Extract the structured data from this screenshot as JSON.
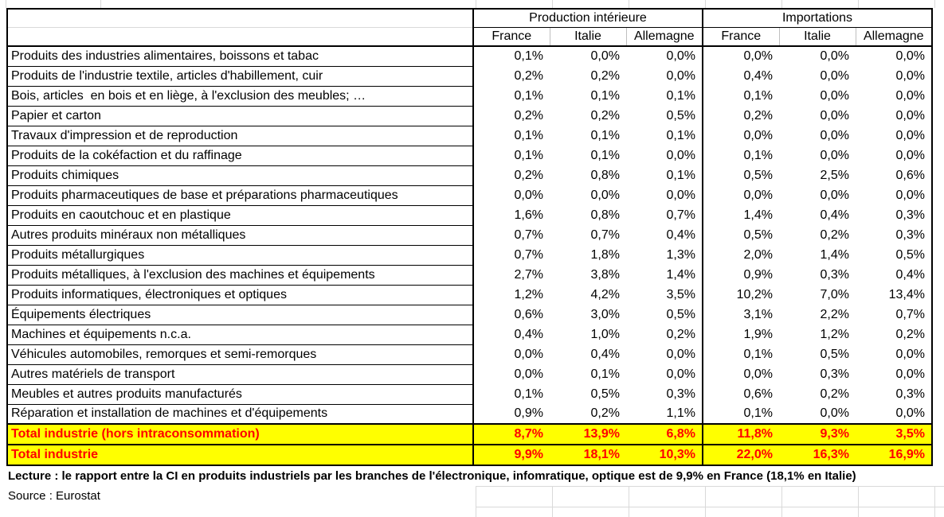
{
  "table": {
    "col_groups": [
      {
        "label": "Production intérieure",
        "columns": [
          "France",
          "Italie",
          "Allemagne"
        ]
      },
      {
        "label": "Importations",
        "columns": [
          "France",
          "Italie",
          "Allemagne"
        ]
      }
    ],
    "rows": [
      {
        "label": "Produits des industries alimentaires, boissons et tabac",
        "values": [
          "0,1%",
          "0,0%",
          "0,0%",
          "0,0%",
          "0,0%",
          "0,0%"
        ]
      },
      {
        "label": "Produits de l'industrie textile, articles d'habillement, cuir",
        "values": [
          "0,2%",
          "0,2%",
          "0,0%",
          "0,4%",
          "0,0%",
          "0,0%"
        ]
      },
      {
        "label": "Bois, articles  en bois et en liège, à l'exclusion des meubles; …",
        "values": [
          "0,1%",
          "0,1%",
          "0,1%",
          "0,1%",
          "0,0%",
          "0,0%"
        ]
      },
      {
        "label": "Papier et carton",
        "values": [
          "0,2%",
          "0,2%",
          "0,5%",
          "0,2%",
          "0,0%",
          "0,0%"
        ]
      },
      {
        "label": "Travaux d'impression et de reproduction",
        "values": [
          "0,1%",
          "0,1%",
          "0,1%",
          "0,0%",
          "0,0%",
          "0,0%"
        ]
      },
      {
        "label": "Produits de la cokéfaction et du raffinage",
        "values": [
          "0,1%",
          "0,1%",
          "0,0%",
          "0,1%",
          "0,0%",
          "0,0%"
        ]
      },
      {
        "label": "Produits chimiques",
        "values": [
          "0,2%",
          "0,8%",
          "0,1%",
          "0,5%",
          "2,5%",
          "0,6%"
        ]
      },
      {
        "label": "Produits pharmaceutiques de base et préparations pharmaceutiques",
        "values": [
          "0,0%",
          "0,0%",
          "0,0%",
          "0,0%",
          "0,0%",
          "0,0%"
        ]
      },
      {
        "label": "Produits en caoutchouc et en plastique",
        "values": [
          "1,6%",
          "0,8%",
          "0,7%",
          "1,4%",
          "0,4%",
          "0,3%"
        ]
      },
      {
        "label": "Autres produits minéraux non métalliques",
        "values": [
          "0,7%",
          "0,7%",
          "0,4%",
          "0,5%",
          "0,2%",
          "0,3%"
        ]
      },
      {
        "label": "Produits métallurgiques",
        "values": [
          "0,7%",
          "1,8%",
          "1,3%",
          "2,0%",
          "1,4%",
          "0,5%"
        ]
      },
      {
        "label": "Produits métalliques, à l'exclusion des machines et équipements",
        "values": [
          "2,7%",
          "3,8%",
          "1,4%",
          "0,9%",
          "0,3%",
          "0,4%"
        ]
      },
      {
        "label": "Produits informatiques, électroniques et optiques",
        "values": [
          "1,2%",
          "4,2%",
          "3,5%",
          "10,2%",
          "7,0%",
          "13,4%"
        ]
      },
      {
        "label": "Équipements électriques",
        "values": [
          "0,6%",
          "3,0%",
          "0,5%",
          "3,1%",
          "2,2%",
          "0,7%"
        ]
      },
      {
        "label": "Machines et équipements n.c.a.",
        "values": [
          "0,4%",
          "1,0%",
          "0,2%",
          "1,9%",
          "1,2%",
          "0,2%"
        ]
      },
      {
        "label": "Véhicules automobiles, remorques et semi-remorques",
        "values": [
          "0,0%",
          "0,4%",
          "0,0%",
          "0,1%",
          "0,5%",
          "0,0%"
        ]
      },
      {
        "label": "Autres matériels de transport",
        "values": [
          "0,0%",
          "0,1%",
          "0,0%",
          "0,0%",
          "0,3%",
          "0,0%"
        ]
      },
      {
        "label": "Meubles et autres produits manufacturés",
        "values": [
          "0,1%",
          "0,5%",
          "0,3%",
          "0,6%",
          "0,2%",
          "0,3%"
        ]
      },
      {
        "label": "Réparation et installation de machines et d'équipements",
        "values": [
          "0,9%",
          "0,2%",
          "1,1%",
          "0,1%",
          "0,0%",
          "0,0%"
        ]
      }
    ],
    "total_rows": [
      {
        "label": "Total industrie (hors intraconsommation)",
        "values": [
          "8,7%",
          "13,9%",
          "6,8%",
          "11,8%",
          "9,3%",
          "3,5%"
        ]
      },
      {
        "label": "Total industrie",
        "values": [
          "9,9%",
          "18,1%",
          "10,3%",
          "22,0%",
          "16,3%",
          "16,9%"
        ]
      }
    ]
  },
  "notes": {
    "lecture": "Lecture : le rapport entre la CI en produits industriels par les branches de l'électronique, infomratique, optique est de 9,9% en France (18,1% en Italie)",
    "source": "Source : Eurostat"
  },
  "colors": {
    "total_row_background": "#FFFF00",
    "total_row_text": "#FF0000",
    "table_border": "#000000",
    "gridline": "#D9D9D9"
  }
}
